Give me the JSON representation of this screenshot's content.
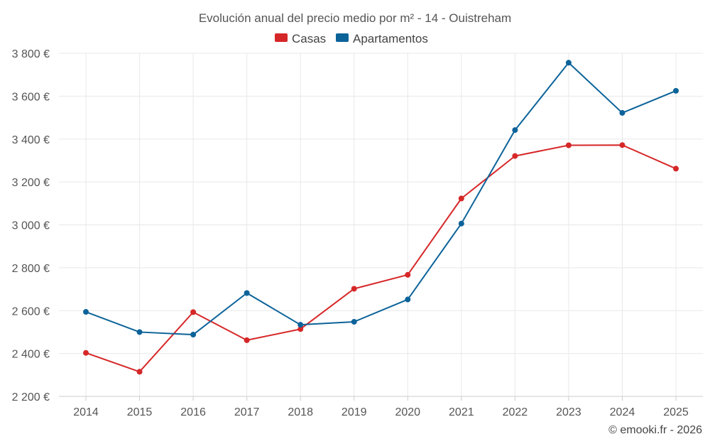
{
  "chart_data": {
    "type": "line",
    "title": "Evolución anual del precio medio por m² - 14 - Ouistreham",
    "categories": [
      "2014",
      "2015",
      "2016",
      "2017",
      "2018",
      "2019",
      "2020",
      "2021",
      "2022",
      "2023",
      "2024",
      "2025"
    ],
    "series": [
      {
        "name": "Casas",
        "color": "#d62728",
        "values": [
          2403,
          2315,
          2593,
          2462,
          2514,
          2702,
          2767,
          3123,
          3321,
          3371,
          3372,
          3262
        ]
      },
      {
        "name": "Apartamentos",
        "color": "#0c6399",
        "values": [
          2594,
          2500,
          2488,
          2682,
          2534,
          2548,
          2652,
          3006,
          3442,
          3756,
          3522,
          3625
        ]
      }
    ],
    "ylim": [
      2200,
      3800
    ],
    "yticks": [
      2200,
      2400,
      2600,
      2800,
      3000,
      3200,
      3400,
      3600,
      3800
    ],
    "ytick_labels": [
      "2 200 €",
      "2 400 €",
      "2 600 €",
      "2 800 €",
      "3 000 €",
      "3 200 €",
      "3 400 €",
      "3 600 €",
      "3 800 €"
    ],
    "grid": true,
    "legend": "top-center",
    "xlabel": "",
    "ylabel": "",
    "credit": "© emooki.fr - 2026"
  }
}
